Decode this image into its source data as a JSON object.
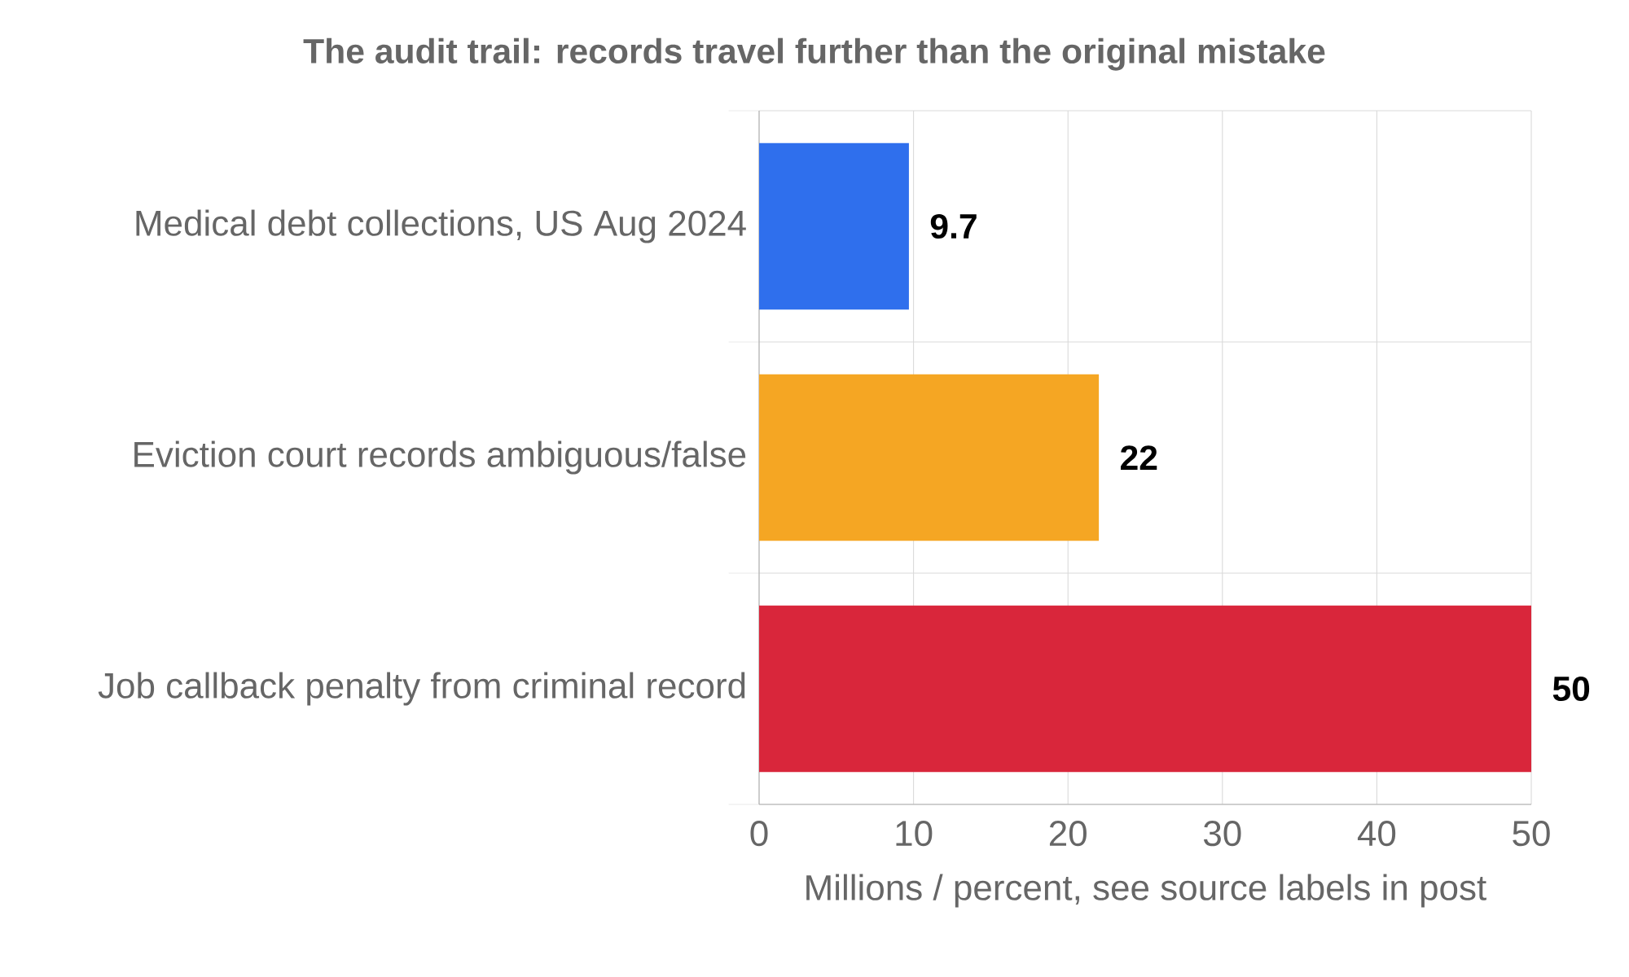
{
  "chart_data": {
    "type": "bar",
    "orientation": "horizontal",
    "title": "The audit trail: records travel further than the original mistake",
    "xlabel": "Millions / percent, see source labels in post",
    "categories": [
      "Medical debt collections, US Aug 2024",
      "Eviction court records ambiguous/false",
      "Job callback penalty from criminal record"
    ],
    "values": [
      9.7,
      22,
      50
    ],
    "colors": [
      "#2f6fed",
      "#f5a623",
      "#d9263b"
    ],
    "xlim": [
      0,
      50
    ],
    "xticks": [
      0,
      10,
      20,
      30,
      40,
      50
    ],
    "grid": true,
    "data_labels": true
  }
}
